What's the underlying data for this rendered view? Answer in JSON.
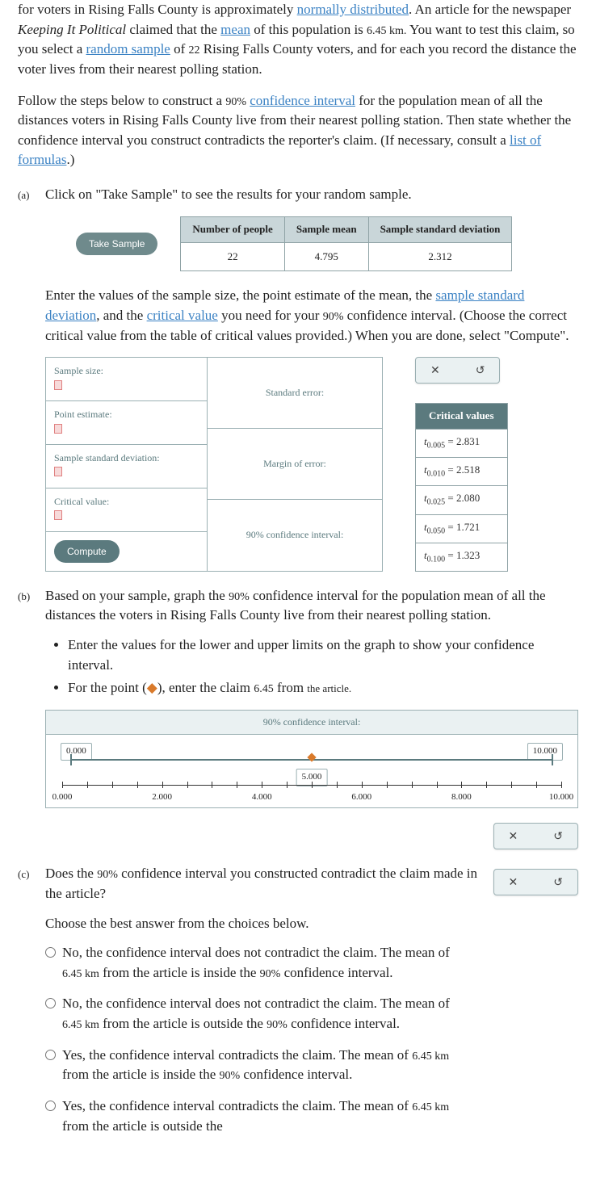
{
  "intro": {
    "p1_a": "for voters in Rising Falls County is approximately ",
    "p1_link1": "normally distributed",
    "p1_b": ". An article for the newspaper ",
    "p1_em": "Keeping It Political",
    "p1_c": " claimed that the ",
    "p1_link2": "mean",
    "p1_d": " of this population is ",
    "p1_val": "6.45 km.",
    "p1_e": " You want to test this claim, so you select a ",
    "p1_link3": "random sample",
    "p1_f": " of ",
    "p1_n": "22",
    "p1_g": " Rising Falls County voters, and for each you record the distance the voter lives from their nearest polling station.",
    "p2_a": "Follow the steps below to construct a ",
    "p2_pct": "90%",
    "p2_b": " ",
    "p2_link1": "confidence interval",
    "p2_c": " for the population mean of all the distances voters in Rising Falls County live from their nearest polling station. Then state whether the confidence interval you construct contradicts the reporter's claim. (If necessary, consult a ",
    "p2_link2": "list of formulas",
    "p2_d": ".)"
  },
  "a": {
    "label": "(a)",
    "p1": "Click on \"Take Sample\" to see the results for your random sample.",
    "take": "Take Sample",
    "th1": "Number of people",
    "th2": "Sample mean",
    "th3": "Sample standard deviation",
    "td1": "22",
    "td2": "4.795",
    "td3": "2.312",
    "p2_a": "Enter the values of the sample size, the point estimate of the mean, the ",
    "p2_l1": "sample standard deviation",
    "p2_b": ", and the ",
    "p2_l2": "critical value",
    "p2_c": " you need for your ",
    "p2_pct": "90%",
    "p2_d": " confidence interval. (Choose the correct critical value from the table of critical values provided.) When you are done, select \"Compute\".",
    "lbl_ss": "Sample size:",
    "lbl_pe": "Point estimate:",
    "lbl_ssd": "Sample standard deviation:",
    "lbl_cv": "Critical value:",
    "lbl_se": "Standard error:",
    "lbl_me": "Margin of error:",
    "lbl_ci": "90% confidence interval:",
    "compute": "Compute",
    "cv_head": "Critical values",
    "cv": [
      {
        "sub": "0.005",
        "v": "2.831"
      },
      {
        "sub": "0.010",
        "v": "2.518"
      },
      {
        "sub": "0.025",
        "v": "2.080"
      },
      {
        "sub": "0.050",
        "v": "1.721"
      },
      {
        "sub": "0.100",
        "v": "1.323"
      }
    ]
  },
  "b": {
    "label": "(b)",
    "p1_a": "Based on your sample, graph the ",
    "p1_pct": "90%",
    "p1_b": " confidence interval for the population mean of all the distances the voters in Rising Falls County live from their nearest polling station.",
    "li1": "Enter the values for the lower and upper limits on the graph to show your confidence interval.",
    "li2_a": "For the point (",
    "li2_b": "), enter the claim ",
    "li2_v": "6.45",
    "li2_c": " from ",
    "li2_d": "the article.",
    "ci_head": "90% confidence interval:",
    "lim_l": "0.000",
    "lim_r": "10.000",
    "lim_m": "5.000",
    "ticks": [
      "0.000",
      "2.000",
      "4.000",
      "6.000",
      "8.000",
      "10.000"
    ]
  },
  "c": {
    "label": "(c)",
    "p1_a": "Does the ",
    "p1_pct": "90%",
    "p1_b": " confidence interval you constructed contradict the claim made in the article?",
    "p2": "Choose the best answer from the choices below.",
    "opts": [
      {
        "a": "No, the confidence interval does not contradict the claim. The mean of ",
        "v": "6.45 km",
        "b": " from the article is inside the ",
        "p": "90%",
        "c": " confidence interval."
      },
      {
        "a": "No, the confidence interval does not contradict the claim. The mean of ",
        "v": "6.45 km",
        "b": " from the article is outside the ",
        "p": "90%",
        "c": " confidence interval."
      },
      {
        "a": "Yes, the confidence interval contradicts the claim. The mean of ",
        "v": "6.45 km",
        "b": " from the article is inside the ",
        "p": "90%",
        "c": " confidence interval."
      },
      {
        "a": "Yes, the confidence interval contradicts the claim. The mean of ",
        "v": "6.45 km",
        "b": " from the article is outside the",
        "p": "",
        "c": ""
      }
    ]
  },
  "ctrl": {
    "x": "✕",
    "r": "↺"
  }
}
